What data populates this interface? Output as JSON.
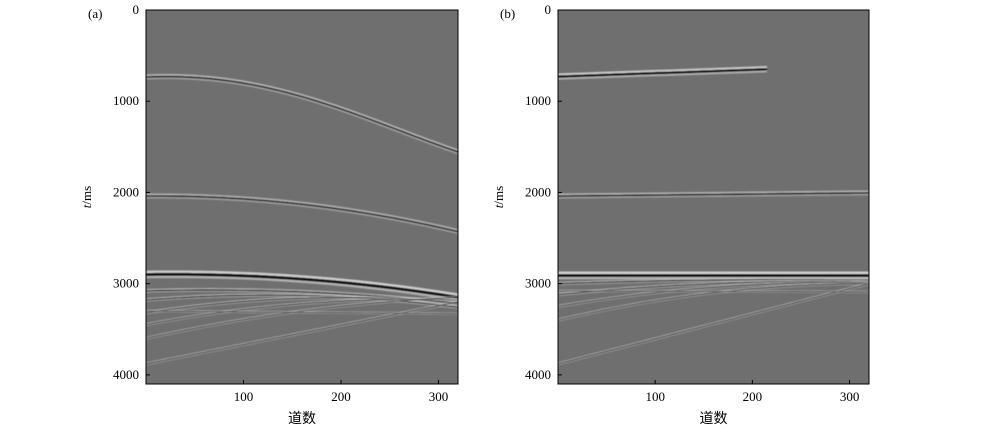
{
  "figure": {
    "background": "#ffffff",
    "section_color": "#6f6f6f"
  },
  "chart_data": [
    {
      "type": "heatmap",
      "panel_label": "(a)",
      "xlabel": "道数",
      "ylabel_italic": "t",
      "ylabel_rest": "/ms",
      "xlim": [
        0,
        320
      ],
      "ylim": [
        0,
        4100
      ],
      "y_inverted": true,
      "xticks": [
        100,
        200,
        300
      ],
      "yticks": [
        0,
        1000,
        2000,
        3000,
        4000
      ],
      "grid": false,
      "events": [
        {
          "x": [
            0,
            80,
            160,
            240,
            320
          ],
          "t": [
            735,
            770,
            950,
            1240,
            1555
          ],
          "strength": 0.55,
          "width": 2.0
        },
        {
          "x": [
            0,
            160,
            320
          ],
          "t": [
            2040,
            2130,
            2430
          ],
          "strength": 0.45,
          "width": 2.0
        },
        {
          "x": [
            0,
            160,
            320
          ],
          "t": [
            2900,
            2950,
            3150
          ],
          "strength": 1.0,
          "width": 3.0
        },
        {
          "x": [
            0,
            160,
            320
          ],
          "t": [
            3080,
            3090,
            3220
          ],
          "strength": 0.5,
          "width": 1.5
        },
        {
          "x": [
            0,
            160,
            320
          ],
          "t": [
            3180,
            3130,
            3260
          ],
          "strength": 0.4,
          "width": 1.4
        },
        {
          "x": [
            0,
            160,
            320
          ],
          "t": [
            3320,
            3160,
            3210
          ],
          "strength": 0.35,
          "width": 1.3
        },
        {
          "x": [
            0,
            160,
            320
          ],
          "t": [
            3450,
            3220,
            3180
          ],
          "strength": 0.3,
          "width": 1.2
        },
        {
          "x": [
            0,
            160,
            320
          ],
          "t": [
            3600,
            3300,
            3150
          ],
          "strength": 0.28,
          "width": 1.2
        },
        {
          "x": [
            0,
            320
          ],
          "t": [
            3880,
            3200
          ],
          "strength": 0.3,
          "width": 1.2
        },
        {
          "x": [
            0,
            320
          ],
          "t": [
            3300,
            3330
          ],
          "strength": 0.2,
          "width": 1.0
        }
      ]
    },
    {
      "type": "heatmap",
      "panel_label": "(b)",
      "xlabel": "道数",
      "ylabel_italic": "t",
      "ylabel_rest": "/ms",
      "xlim": [
        0,
        320
      ],
      "ylim": [
        0,
        4100
      ],
      "y_inverted": true,
      "xticks": [
        100,
        200,
        300
      ],
      "yticks": [
        0,
        1000,
        2000,
        3000,
        4000
      ],
      "grid": false,
      "events": [
        {
          "x": [
            0,
            215
          ],
          "t": [
            730,
            650
          ],
          "strength": 0.9,
          "width": 2.5
        },
        {
          "x": [
            0,
            320
          ],
          "t": [
            2040,
            2005
          ],
          "strength": 0.45,
          "width": 2.0
        },
        {
          "x": [
            0,
            320
          ],
          "t": [
            2910,
            2910
          ],
          "strength": 1.0,
          "width": 3.0
        },
        {
          "x": [
            0,
            160,
            320
          ],
          "t": [
            3000,
            2960,
            2960
          ],
          "strength": 0.4,
          "width": 1.4
        },
        {
          "x": [
            0,
            160,
            320
          ],
          "t": [
            3120,
            3000,
            2980
          ],
          "strength": 0.35,
          "width": 1.3
        },
        {
          "x": [
            0,
            160,
            320
          ],
          "t": [
            3250,
            3040,
            2990
          ],
          "strength": 0.3,
          "width": 1.2
        },
        {
          "x": [
            0,
            160,
            320
          ],
          "t": [
            3400,
            3100,
            3000
          ],
          "strength": 0.28,
          "width": 1.2
        },
        {
          "x": [
            0,
            320
          ],
          "t": [
            3880,
            3000
          ],
          "strength": 0.3,
          "width": 1.2
        },
        {
          "x": [
            0,
            320
          ],
          "t": [
            3080,
            3090
          ],
          "strength": 0.2,
          "width": 1.0
        }
      ]
    }
  ]
}
